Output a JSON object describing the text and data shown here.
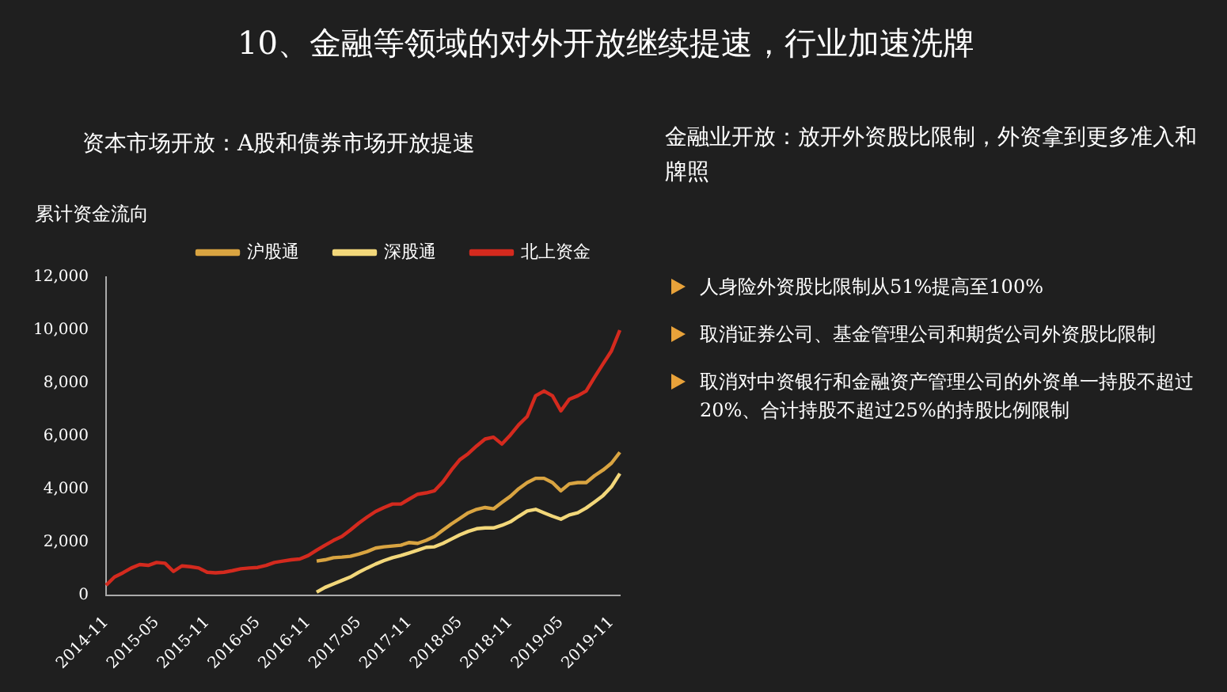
{
  "chart_data": {
    "type": "line",
    "title": "10、金融等领域的对外开放继续提速，行业加速洗牌",
    "subtitle": "资本市场开放：A股和债券市场开放提速",
    "ylabel": "累计资金流向",
    "annotations": [
      "金融业开放：放开外资股比限制，外资拿到更多准入和牌照",
      "人身险外资股比限制从51%提高至100%",
      "取消证券公司、基金管理公司和期货公司外资股比限制",
      "取消对中资银行和金融资产管理公司的外资单一持股不超过20%、合计持股不超过25%的持股比例限制"
    ],
    "categories": [
      "2014-11",
      null,
      null,
      null,
      null,
      null,
      "2015-05",
      null,
      null,
      null,
      null,
      null,
      "2015-11",
      null,
      null,
      null,
      null,
      null,
      "2016-05",
      null,
      null,
      null,
      null,
      null,
      "2016-11",
      null,
      null,
      null,
      null,
      null,
      "2017-05",
      null,
      null,
      null,
      null,
      null,
      "2017-11",
      null,
      null,
      null,
      null,
      null,
      "2018-05",
      null,
      null,
      null,
      null,
      null,
      "2018-11",
      null,
      null,
      null,
      null,
      null,
      "2019-05",
      null,
      null,
      null,
      null,
      null,
      "2019-11",
      null
    ],
    "series": [
      {
        "name": "沪股通",
        "color": "#d9a441",
        "values": [
          null,
          null,
          null,
          null,
          null,
          null,
          null,
          null,
          null,
          null,
          null,
          null,
          null,
          null,
          null,
          null,
          null,
          null,
          null,
          null,
          null,
          null,
          null,
          null,
          null,
          1300,
          1350,
          1430,
          1450,
          1480,
          1560,
          1660,
          1790,
          1840,
          1870,
          1900,
          2000,
          1970,
          2080,
          2230,
          2470,
          2700,
          2910,
          3120,
          3250,
          3320,
          3270,
          3510,
          3740,
          4030,
          4260,
          4420,
          4420,
          4260,
          3950,
          4210,
          4260,
          4260,
          4520,
          4730,
          4990,
          5400
        ]
      },
      {
        "name": "深股通",
        "color": "#f2d77a",
        "values": [
          null,
          null,
          null,
          null,
          null,
          null,
          null,
          null,
          null,
          null,
          null,
          null,
          null,
          null,
          null,
          null,
          null,
          null,
          null,
          null,
          null,
          null,
          null,
          null,
          null,
          130,
          310,
          440,
          570,
          700,
          880,
          1040,
          1190,
          1320,
          1430,
          1510,
          1610,
          1710,
          1820,
          1840,
          1970,
          2130,
          2290,
          2420,
          2520,
          2550,
          2550,
          2650,
          2780,
          2990,
          3190,
          3250,
          3120,
          2990,
          2880,
          3040,
          3120,
          3300,
          3530,
          3770,
          4100,
          4600
        ]
      },
      {
        "name": "北上资金",
        "color": "#d42a1e",
        "values": [
          390,
          700,
          860,
          1040,
          1170,
          1140,
          1250,
          1220,
          910,
          1120,
          1090,
          1040,
          880,
          860,
          880,
          940,
          1010,
          1040,
          1060,
          1140,
          1250,
          1300,
          1350,
          1380,
          1510,
          1710,
          1900,
          2080,
          2230,
          2470,
          2730,
          2960,
          3170,
          3320,
          3450,
          3450,
          3640,
          3820,
          3870,
          3950,
          4290,
          4730,
          5120,
          5350,
          5640,
          5900,
          5970,
          5710,
          6050,
          6440,
          6750,
          7530,
          7710,
          7530,
          6960,
          7400,
          7530,
          7710,
          8230,
          8730,
          9220,
          10000
        ]
      }
    ],
    "ylim": [
      0,
      12000
    ],
    "yticks": [
      0,
      {
        "value": 2000,
        "label": "2,000"
      },
      {
        "value": 4000,
        "label": "4,000"
      },
      {
        "value": 6000,
        "label": "6,000"
      },
      {
        "value": 8000,
        "label": "8,000"
      },
      {
        "value": 10000,
        "label": "10,000"
      },
      {
        "value": 12000,
        "label": "12,000"
      }
    ],
    "grid": false,
    "legend": "top",
    "marker": "none",
    "line_style": "solid"
  }
}
